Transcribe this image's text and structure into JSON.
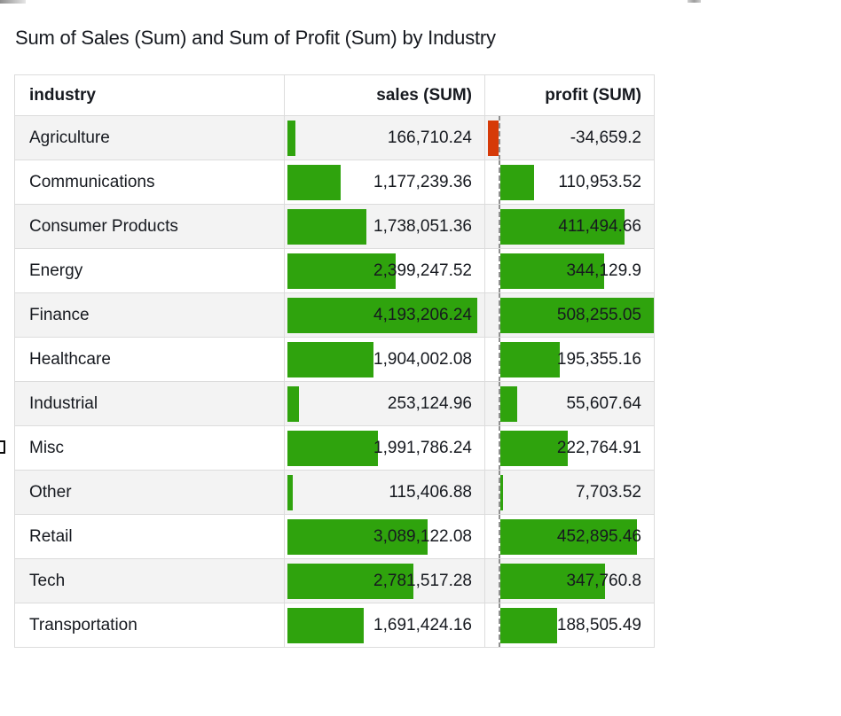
{
  "title": "Sum of Sales (Sum) and Sum of Profit (Sum) by Industry",
  "chart_data": {
    "type": "table",
    "title": "Sum of Sales (Sum) and Sum of Profit (Sum) by Industry",
    "columns": [
      "industry",
      "sales (SUM)",
      "profit (SUM)"
    ],
    "rows": [
      {
        "industry": "Agriculture",
        "sales": 166710.24,
        "profit": -34659.2,
        "sales_display": "166,710.24",
        "profit_display": "-34,659.2"
      },
      {
        "industry": "Communications",
        "sales": 1177239.36,
        "profit": 110953.52,
        "sales_display": "1,177,239.36",
        "profit_display": "110,953.52"
      },
      {
        "industry": "Consumer Products",
        "sales": 1738051.36,
        "profit": 411494.66,
        "sales_display": "1,738,051.36",
        "profit_display": "411,494.66"
      },
      {
        "industry": "Energy",
        "sales": 2399247.52,
        "profit": 344129.9,
        "sales_display": "2,399,247.52",
        "profit_display": "344,129.9"
      },
      {
        "industry": "Finance",
        "sales": 4193206.24,
        "profit": 508255.05,
        "sales_display": "4,193,206.24",
        "profit_display": "508,255.05"
      },
      {
        "industry": "Healthcare",
        "sales": 1904002.08,
        "profit": 195355.16,
        "sales_display": "1,904,002.08",
        "profit_display": "195,355.16"
      },
      {
        "industry": "Industrial",
        "sales": 253124.96,
        "profit": 55607.64,
        "sales_display": "253,124.96",
        "profit_display": "55,607.64"
      },
      {
        "industry": "Misc",
        "sales": 1991786.24,
        "profit": 222764.91,
        "sales_display": "1,991,786.24",
        "profit_display": "222,764.91"
      },
      {
        "industry": "Other",
        "sales": 115406.88,
        "profit": 7703.52,
        "sales_display": "115,406.88",
        "profit_display": "7,703.52"
      },
      {
        "industry": "Retail",
        "sales": 3089122.08,
        "profit": 452895.46,
        "sales_display": "3,089,122.08",
        "profit_display": "452,895.46"
      },
      {
        "industry": "Tech",
        "sales": 2781517.28,
        "profit": 347760.8,
        "sales_display": "2,781,517.28",
        "profit_display": "347,760.8"
      },
      {
        "industry": "Transportation",
        "sales": 1691424.16,
        "profit": 188505.49,
        "sales_display": "1,691,424.16",
        "profit_display": "188,505.49"
      }
    ],
    "sales_axis_max": 4193206.24,
    "profit_axis_max": 508255.05,
    "bar_colors": {
      "positive": "#2fa30d",
      "negative": "#d63a08"
    }
  }
}
